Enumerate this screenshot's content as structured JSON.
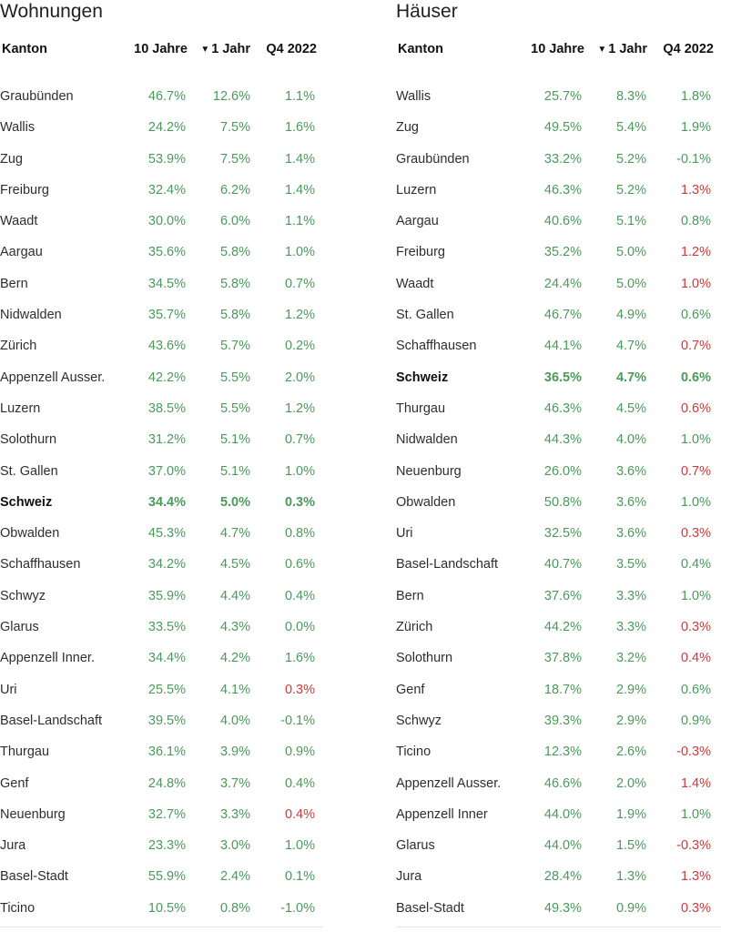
{
  "colors": {
    "positive": "#4a9a5a",
    "negative": "#cf3a3a"
  },
  "headers": {
    "kanton": "Kanton",
    "ten_years": "10 Jahre",
    "one_year": "1 Jahr",
    "q4": "Q4 2022",
    "sort_indicator": "▼"
  },
  "wohnungen": {
    "title": "Wohnungen",
    "rows": [
      {
        "name": "Graubünden",
        "ten": "46.7%",
        "one": "12.6%",
        "q4": "1.1%",
        "neg": false,
        "bold": false
      },
      {
        "name": "Wallis",
        "ten": "24.2%",
        "one": "7.5%",
        "q4": "1.6%",
        "neg": false,
        "bold": false
      },
      {
        "name": "Zug",
        "ten": "53.9%",
        "one": "7.5%",
        "q4": "1.4%",
        "neg": false,
        "bold": false
      },
      {
        "name": "Freiburg",
        "ten": "32.4%",
        "one": "6.2%",
        "q4": "1.4%",
        "neg": false,
        "bold": false
      },
      {
        "name": "Waadt",
        "ten": "30.0%",
        "one": "6.0%",
        "q4": "1.1%",
        "neg": false,
        "bold": false
      },
      {
        "name": "Aargau",
        "ten": "35.6%",
        "one": "5.8%",
        "q4": "1.0%",
        "neg": false,
        "bold": false
      },
      {
        "name": "Bern",
        "ten": "34.5%",
        "one": "5.8%",
        "q4": "0.7%",
        "neg": false,
        "bold": false
      },
      {
        "name": "Nidwalden",
        "ten": "35.7%",
        "one": "5.8%",
        "q4": "1.2%",
        "neg": false,
        "bold": false
      },
      {
        "name": "Zürich",
        "ten": "43.6%",
        "one": "5.7%",
        "q4": "0.2%",
        "neg": false,
        "bold": false
      },
      {
        "name": "Appenzell Ausser.",
        "ten": "42.2%",
        "one": "5.5%",
        "q4": "2.0%",
        "neg": false,
        "bold": false
      },
      {
        "name": "Luzern",
        "ten": "38.5%",
        "one": "5.5%",
        "q4": "1.2%",
        "neg": false,
        "bold": false
      },
      {
        "name": "Solothurn",
        "ten": "31.2%",
        "one": "5.1%",
        "q4": "0.7%",
        "neg": false,
        "bold": false
      },
      {
        "name": "St. Gallen",
        "ten": "37.0%",
        "one": "5.1%",
        "q4": "1.0%",
        "neg": false,
        "bold": false
      },
      {
        "name": "Schweiz",
        "ten": "34.4%",
        "one": "5.0%",
        "q4": "0.3%",
        "neg": false,
        "bold": true
      },
      {
        "name": "Obwalden",
        "ten": "45.3%",
        "one": "4.7%",
        "q4": "0.8%",
        "neg": false,
        "bold": false
      },
      {
        "name": "Schaffhausen",
        "ten": "34.2%",
        "one": "4.5%",
        "q4": "0.6%",
        "neg": false,
        "bold": false
      },
      {
        "name": "Schwyz",
        "ten": "35.9%",
        "one": "4.4%",
        "q4": "0.4%",
        "neg": false,
        "bold": false
      },
      {
        "name": "Glarus",
        "ten": "33.5%",
        "one": "4.3%",
        "q4": "0.0%",
        "neg": false,
        "bold": false
      },
      {
        "name": "Appenzell Inner.",
        "ten": "34.4%",
        "one": "4.2%",
        "q4": "1.6%",
        "neg": false,
        "bold": false
      },
      {
        "name": "Uri",
        "ten": "25.5%",
        "one": "4.1%",
        "q4": "0.3%",
        "neg": true,
        "bold": false
      },
      {
        "name": "Basel-Landschaft",
        "ten": "39.5%",
        "one": "4.0%",
        "q4": "-0.1%",
        "neg": false,
        "bold": false
      },
      {
        "name": "Thurgau",
        "ten": "36.1%",
        "one": "3.9%",
        "q4": "0.9%",
        "neg": false,
        "bold": false
      },
      {
        "name": "Genf",
        "ten": "24.8%",
        "one": "3.7%",
        "q4": "0.4%",
        "neg": false,
        "bold": false
      },
      {
        "name": "Neuenburg",
        "ten": "32.7%",
        "one": "3.3%",
        "q4": "0.4%",
        "neg": true,
        "bold": false
      },
      {
        "name": "Jura",
        "ten": "23.3%",
        "one": "3.0%",
        "q4": "1.0%",
        "neg": false,
        "bold": false
      },
      {
        "name": "Basel-Stadt",
        "ten": "55.9%",
        "one": "2.4%",
        "q4": "0.1%",
        "neg": false,
        "bold": false
      },
      {
        "name": "Ticino",
        "ten": "10.5%",
        "one": "0.8%",
        "q4": "-1.0%",
        "neg": false,
        "bold": false
      }
    ]
  },
  "haeuser": {
    "title": "Häuser",
    "rows": [
      {
        "name": "Wallis",
        "ten": "25.7%",
        "one": "8.3%",
        "q4": "1.8%",
        "neg": false,
        "bold": false
      },
      {
        "name": "Zug",
        "ten": "49.5%",
        "one": "5.4%",
        "q4": "1.9%",
        "neg": false,
        "bold": false
      },
      {
        "name": "Graubünden",
        "ten": "33.2%",
        "one": "5.2%",
        "q4": "-0.1%",
        "neg": false,
        "bold": false
      },
      {
        "name": "Luzern",
        "ten": "46.3%",
        "one": "5.2%",
        "q4": "1.3%",
        "neg": true,
        "bold": false
      },
      {
        "name": "Aargau",
        "ten": "40.6%",
        "one": "5.1%",
        "q4": "0.8%",
        "neg": false,
        "bold": false
      },
      {
        "name": "Freiburg",
        "ten": "35.2%",
        "one": "5.0%",
        "q4": "1.2%",
        "neg": true,
        "bold": false
      },
      {
        "name": "Waadt",
        "ten": "24.4%",
        "one": "5.0%",
        "q4": "1.0%",
        "neg": true,
        "bold": false
      },
      {
        "name": "St. Gallen",
        "ten": "46.7%",
        "one": "4.9%",
        "q4": "0.6%",
        "neg": false,
        "bold": false
      },
      {
        "name": "Schaffhausen",
        "ten": "44.1%",
        "one": "4.7%",
        "q4": "0.7%",
        "neg": true,
        "bold": false
      },
      {
        "name": "Schweiz",
        "ten": "36.5%",
        "one": "4.7%",
        "q4": "0.6%",
        "neg": false,
        "bold": true
      },
      {
        "name": "Thurgau",
        "ten": "46.3%",
        "one": "4.5%",
        "q4": "0.6%",
        "neg": true,
        "bold": false
      },
      {
        "name": "Nidwalden",
        "ten": "44.3%",
        "one": "4.0%",
        "q4": "1.0%",
        "neg": false,
        "bold": false
      },
      {
        "name": "Neuenburg",
        "ten": "26.0%",
        "one": "3.6%",
        "q4": "0.7%",
        "neg": true,
        "bold": false
      },
      {
        "name": "Obwalden",
        "ten": "50.8%",
        "one": "3.6%",
        "q4": "1.0%",
        "neg": false,
        "bold": false
      },
      {
        "name": "Uri",
        "ten": "32.5%",
        "one": "3.6%",
        "q4": "0.3%",
        "neg": true,
        "bold": false
      },
      {
        "name": "Basel-Landschaft",
        "ten": "40.7%",
        "one": "3.5%",
        "q4": "0.4%",
        "neg": false,
        "bold": false
      },
      {
        "name": "Bern",
        "ten": "37.6%",
        "one": "3.3%",
        "q4": "1.0%",
        "neg": false,
        "bold": false
      },
      {
        "name": "Zürich",
        "ten": "44.2%",
        "one": "3.3%",
        "q4": "0.3%",
        "neg": true,
        "bold": false
      },
      {
        "name": "Solothurn",
        "ten": "37.8%",
        "one": "3.2%",
        "q4": "0.4%",
        "neg": true,
        "bold": false
      },
      {
        "name": "Genf",
        "ten": "18.7%",
        "one": "2.9%",
        "q4": "0.6%",
        "neg": false,
        "bold": false
      },
      {
        "name": "Schwyz",
        "ten": "39.3%",
        "one": "2.9%",
        "q4": "0.9%",
        "neg": false,
        "bold": false
      },
      {
        "name": "Ticino",
        "ten": "12.3%",
        "one": "2.6%",
        "q4": "-0.3%",
        "neg": true,
        "bold": false
      },
      {
        "name": "Appenzell Ausser.",
        "ten": "46.6%",
        "one": "2.0%",
        "q4": "1.4%",
        "neg": true,
        "bold": false
      },
      {
        "name": "Appenzell Inner",
        "ten": "44.0%",
        "one": "1.9%",
        "q4": "1.0%",
        "neg": false,
        "bold": false
      },
      {
        "name": "Glarus",
        "ten": "44.0%",
        "one": "1.5%",
        "q4": "-0.3%",
        "neg": true,
        "bold": false
      },
      {
        "name": "Jura",
        "ten": "28.4%",
        "one": "1.3%",
        "q4": "1.3%",
        "neg": true,
        "bold": false
      },
      {
        "name": "Basel-Stadt",
        "ten": "49.3%",
        "one": "0.9%",
        "q4": "0.3%",
        "neg": true,
        "bold": false
      }
    ]
  }
}
